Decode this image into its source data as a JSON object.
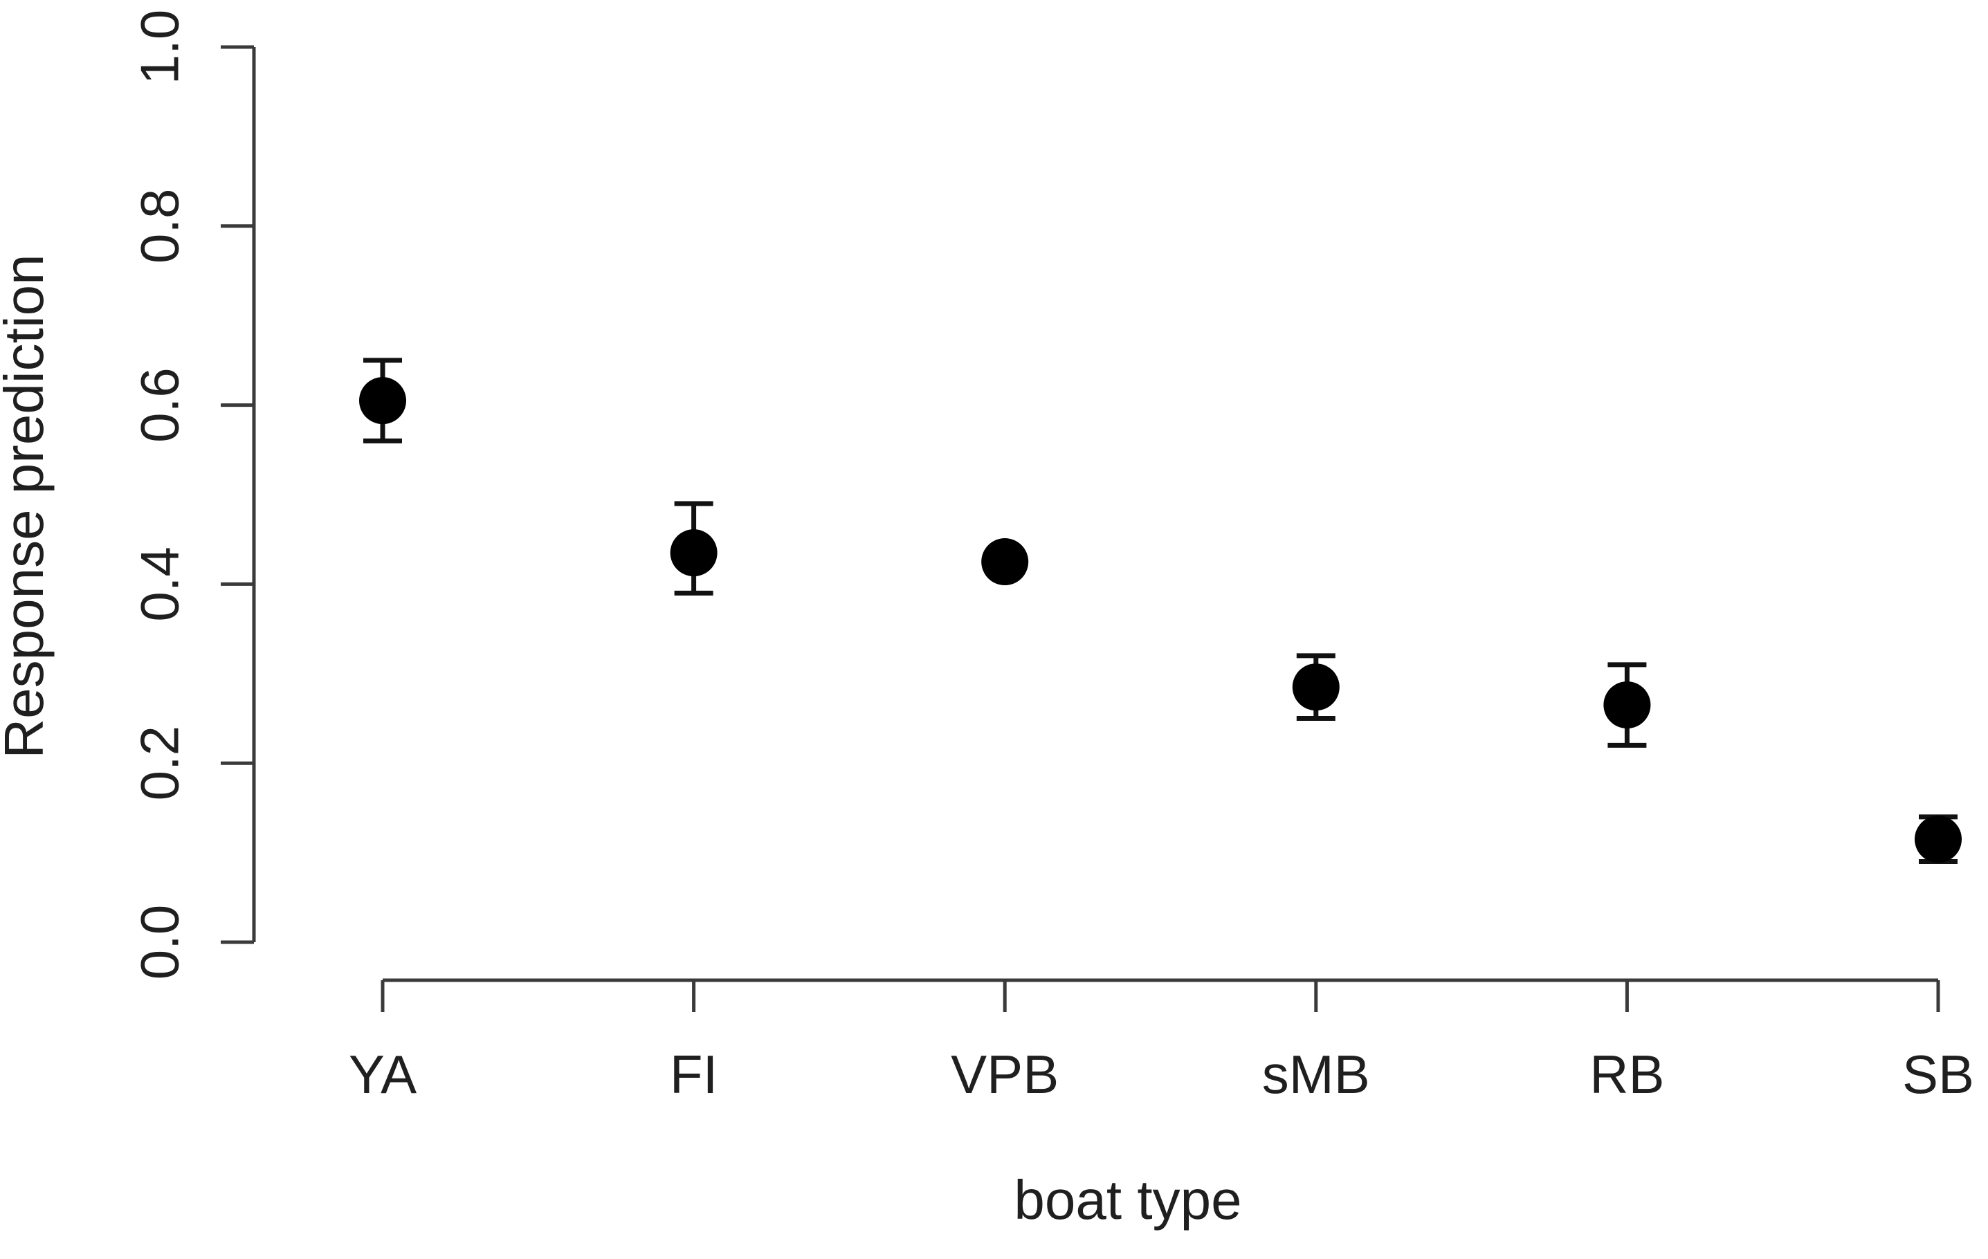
{
  "chart_data": {
    "type": "scatter",
    "title": "",
    "xlabel": "boat type",
    "ylabel": "Response prediction",
    "categories": [
      "YA",
      "FI",
      "VPB",
      "sMB",
      "RB",
      "SB"
    ],
    "series": [
      {
        "name": "Response prediction",
        "values": [
          0.605,
          0.435,
          0.425,
          0.285,
          0.265,
          0.115
        ],
        "ci_low": [
          0.56,
          0.39,
          null,
          0.25,
          0.22,
          0.09
        ],
        "ci_high": [
          0.65,
          0.49,
          null,
          0.32,
          0.31,
          0.14
        ]
      }
    ],
    "ylim": [
      0.0,
      1.0
    ],
    "yticks": [
      0.0,
      0.2,
      0.4,
      0.6,
      0.8,
      1.0
    ],
    "ytick_labels": [
      "0.0",
      "0.2",
      "0.4",
      "0.6",
      "0.8",
      "1.0"
    ],
    "grid": false,
    "legend": false,
    "marker": "filled-circle",
    "error_bars": true,
    "colors": {
      "point": "#000000",
      "error_bar": "#111111",
      "axis": "#3a3a3a",
      "text": "#1f1f1f",
      "background": "#ffffff"
    }
  }
}
